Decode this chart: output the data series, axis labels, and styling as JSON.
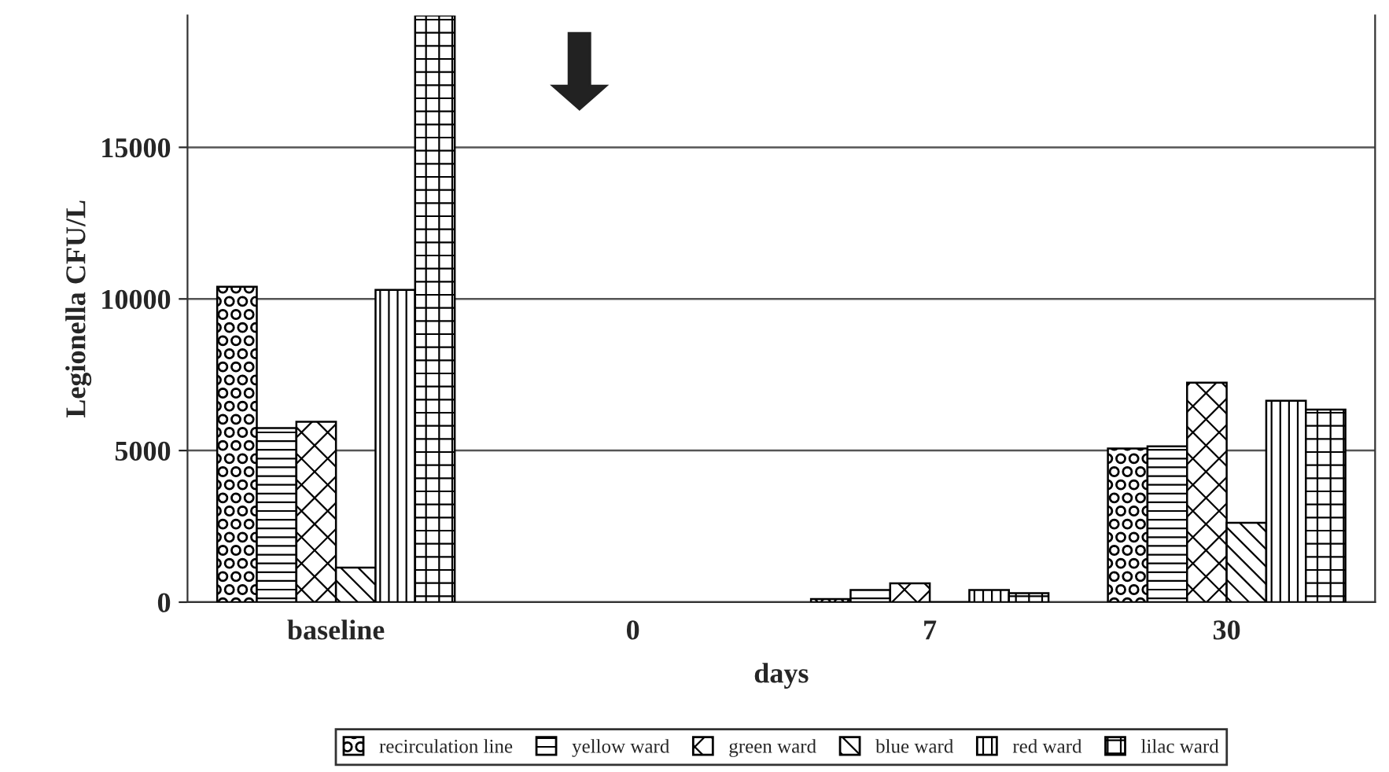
{
  "chart_data": {
    "type": "bar",
    "xlabel": "days",
    "ylabel": "Legionella CFU/L",
    "categories": [
      "baseline",
      "0",
      "7",
      "30"
    ],
    "series": [
      {
        "name": "recirculation line",
        "color": "#000000",
        "values": [
          10400,
          null,
          100,
          5070
        ]
      },
      {
        "name": "yellow ward",
        "color": "#000000",
        "values": [
          5740,
          null,
          400,
          5140
        ]
      },
      {
        "name": "green ward",
        "color": "#000000",
        "values": [
          5950,
          null,
          620,
          7240
        ]
      },
      {
        "name": "blue ward",
        "color": "#000000",
        "values": [
          1140,
          null,
          0,
          2620
        ]
      },
      {
        "name": "red ward",
        "color": "#000000",
        "values": [
          10300,
          null,
          400,
          6640
        ]
      },
      {
        "name": "lilac ward",
        "color": "#000000",
        "values": [
          19350,
          null,
          300,
          6350
        ]
      }
    ],
    "ylim": [
      0,
      19350
    ],
    "yticks": [
      0,
      5000,
      10000,
      15000
    ],
    "grid": "y",
    "legend": "bottom"
  }
}
